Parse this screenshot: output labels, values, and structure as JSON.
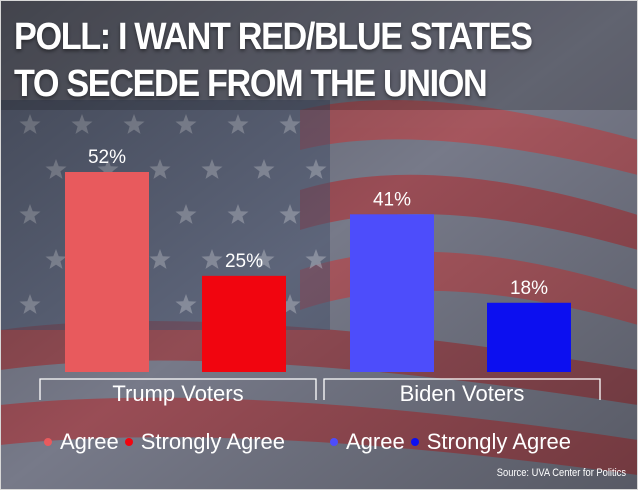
{
  "headline": {
    "line1": "POLL: I WANT RED/BLUE STATES",
    "line2": "TO SECEDE FROM THE UNION"
  },
  "colors": {
    "trump_agree": "#e85a5d",
    "trump_strongly": "#f1050f",
    "biden_agree": "#4d4dfb",
    "biden_strongly": "#0c0ff0",
    "text": "#ffffff"
  },
  "chart_data": {
    "type": "bar",
    "categories": [
      "Trump Voters",
      "Biden Voters"
    ],
    "series": [
      {
        "name": "Agree",
        "values": [
          52,
          41
        ]
      },
      {
        "name": "Strongly Agree",
        "values": [
          25,
          18
        ]
      }
    ],
    "value_labels": [
      [
        "52%",
        "25%"
      ],
      [
        "41%",
        "18%"
      ]
    ],
    "ylim": [
      0,
      52
    ],
    "grid": false
  },
  "legend": {
    "trump_agree": "Agree",
    "trump_strongly": "Strongly Agree",
    "biden_agree": "Agree",
    "biden_strongly": "Strongly Agree"
  },
  "source": "Source: UVA Center for Politics"
}
